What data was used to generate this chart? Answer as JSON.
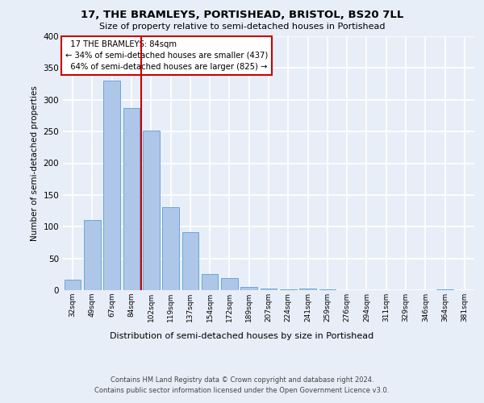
{
  "title1": "17, THE BRAMLEYS, PORTISHEAD, BRISTOL, BS20 7LL",
  "title2": "Size of property relative to semi-detached houses in Portishead",
  "xlabel": "Distribution of semi-detached houses by size in Portishead",
  "ylabel": "Number of semi-detached properties",
  "bin_labels": [
    "32sqm",
    "49sqm",
    "67sqm",
    "84sqm",
    "102sqm",
    "119sqm",
    "137sqm",
    "154sqm",
    "172sqm",
    "189sqm",
    "207sqm",
    "224sqm",
    "241sqm",
    "259sqm",
    "276sqm",
    "294sqm",
    "311sqm",
    "329sqm",
    "346sqm",
    "364sqm",
    "381sqm"
  ],
  "bin_values": [
    17,
    110,
    330,
    287,
    252,
    131,
    91,
    26,
    19,
    5,
    3,
    1,
    2,
    1,
    0,
    0,
    0,
    0,
    0,
    1,
    0
  ],
  "property_sqm": "84sqm",
  "property_label": "17 THE BRAMLEYS: 84sqm",
  "pct_smaller": 34,
  "count_smaller": 437,
  "pct_larger": 64,
  "count_larger": 825,
  "bar_color": "#aec6e8",
  "bar_edge_color": "#5a9fd4",
  "highlight_line_color": "#cc0000",
  "annotation_box_edge_color": "#cc0000",
  "background_color": "#e8eef8",
  "plot_bg_color": "#e8eef8",
  "grid_color": "#ffffff",
  "ylim": [
    0,
    400
  ],
  "yticks": [
    0,
    50,
    100,
    150,
    200,
    250,
    300,
    350,
    400
  ],
  "footnote1": "Contains HM Land Registry data © Crown copyright and database right 2024.",
  "footnote2": "Contains public sector information licensed under the Open Government Licence v3.0."
}
